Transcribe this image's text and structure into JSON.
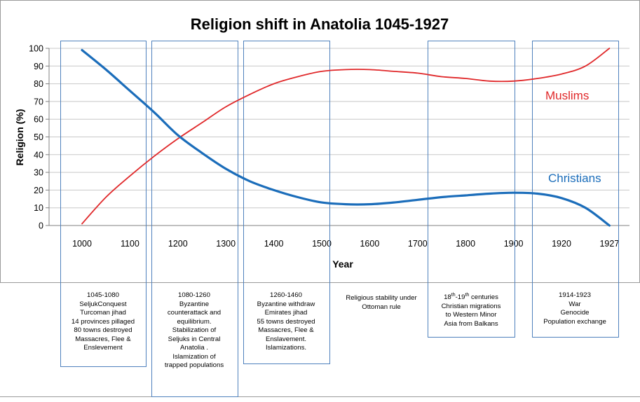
{
  "chart_data": {
    "type": "line",
    "title": "Religion shift in Anatolia 1045-1927",
    "xlabel": "Year",
    "ylabel": "Religion (%)",
    "ylim": [
      0,
      100
    ],
    "yticks": [
      0,
      10,
      20,
      30,
      40,
      50,
      60,
      70,
      80,
      90,
      100
    ],
    "x_tick_labels": [
      "1000",
      "1100",
      "1200",
      "1300",
      "1400",
      "1500",
      "1600",
      "1700",
      "1800",
      "1900",
      "1920",
      "1927"
    ],
    "series": [
      {
        "name": "Muslims",
        "color": "#e0282a",
        "points": [
          [
            0,
            1
          ],
          [
            0.5,
            16
          ],
          [
            1,
            28
          ],
          [
            1.5,
            39
          ],
          [
            2,
            49
          ],
          [
            2.5,
            58
          ],
          [
            3,
            67
          ],
          [
            3.5,
            74
          ],
          [
            4,
            80
          ],
          [
            4.5,
            84
          ],
          [
            5,
            87
          ],
          [
            5.5,
            88
          ],
          [
            6,
            88
          ],
          [
            6.5,
            87
          ],
          [
            7,
            86
          ],
          [
            7.5,
            84
          ],
          [
            8,
            83
          ],
          [
            8.5,
            81.5
          ],
          [
            9,
            81.5
          ],
          [
            9.5,
            83
          ],
          [
            10,
            85.5
          ],
          [
            10.5,
            90
          ],
          [
            11,
            100
          ]
        ]
      },
      {
        "name": "Christians",
        "color": "#1b6dba",
        "points": [
          [
            0,
            99
          ],
          [
            0.5,
            88
          ],
          [
            1,
            76
          ],
          [
            1.5,
            64
          ],
          [
            2,
            51
          ],
          [
            2.5,
            41
          ],
          [
            3,
            32
          ],
          [
            3.5,
            25
          ],
          [
            4,
            20
          ],
          [
            4.5,
            16
          ],
          [
            5,
            13
          ],
          [
            5.5,
            12
          ],
          [
            6,
            12
          ],
          [
            6.5,
            13
          ],
          [
            7,
            14.5
          ],
          [
            7.5,
            16
          ],
          [
            8,
            17
          ],
          [
            8.5,
            18
          ],
          [
            9,
            18.5
          ],
          [
            9.5,
            18
          ],
          [
            10,
            15.5
          ],
          [
            10.5,
            10
          ],
          [
            11,
            0
          ]
        ]
      }
    ],
    "series_labels": [
      "Muslims",
      "Christians"
    ]
  },
  "annotations": [
    {
      "lines": [
        "1045-1080",
        "SeljukConquest",
        "Turcoman jihad",
        "14 provinces pillaged",
        "80 towns destroyed",
        "Massacres, Flee &",
        "Enslevement"
      ]
    },
    {
      "lines": [
        "1080-1260",
        "Byzantine",
        "counterattack and",
        "equilibrium.",
        "Stabilization  of",
        "Seljuks in Central",
        "Anatolia .",
        "Islamization  of",
        "trapped populations"
      ]
    },
    {
      "lines": [
        "1260-1460",
        "Byzantine withdraw",
        "Emirates jihad",
        "55 towns destroyed",
        "Massacres, Flee &",
        "Enslavement.",
        "Islamizations."
      ]
    },
    {
      "lines": [
        "Religious stability under",
        "Ottoman rule"
      ]
    },
    {
      "lines_html": [
        "18th-19th centuries"
      ],
      "lines": [
        "Christian migrations",
        "to Western Minor",
        "Asia from Balkans"
      ]
    },
    {
      "lines": [
        "1914-1923",
        "War",
        "Genocide",
        "Population exchange"
      ]
    }
  ]
}
